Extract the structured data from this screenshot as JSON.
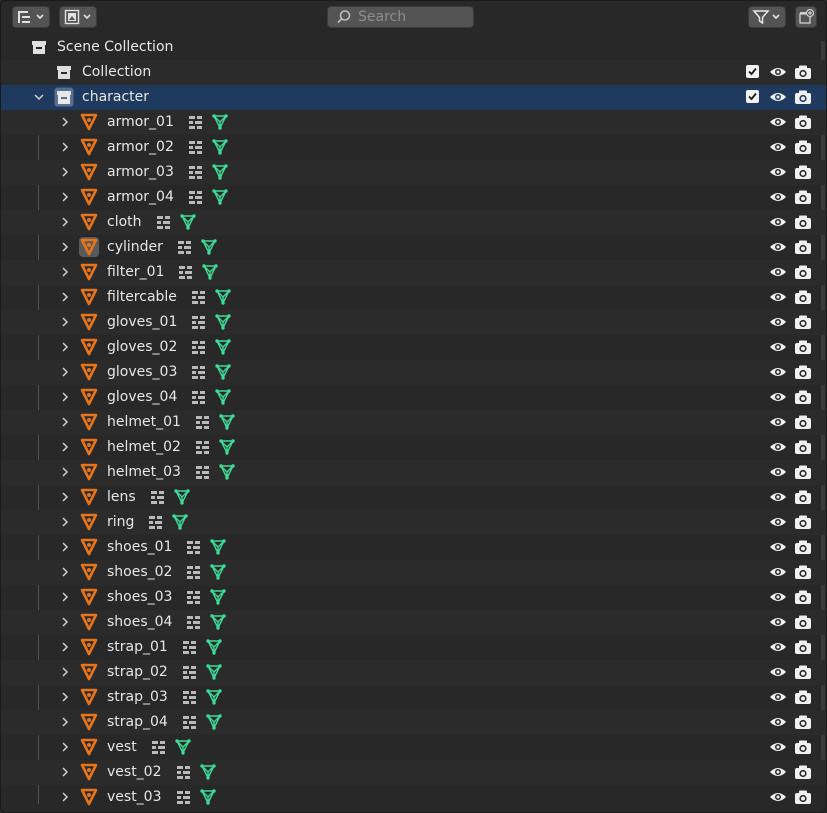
{
  "header": {
    "search_placeholder": "Search",
    "display_mode_icon": "outliner-tree-icon",
    "filter_icon": "funnel-icon",
    "new_collection_icon": "new-collection-icon"
  },
  "tree": {
    "scene_collection": "Scene Collection",
    "collection": "Collection",
    "character": "character",
    "objects": [
      "armor_01",
      "armor_02",
      "armor_03",
      "armor_04",
      "cloth",
      "cylinder",
      "filter_01",
      "filtercable",
      "gloves_01",
      "gloves_02",
      "gloves_03",
      "gloves_04",
      "helmet_01",
      "helmet_02",
      "helmet_03",
      "lens",
      "ring",
      "shoes_01",
      "shoes_02",
      "shoes_03",
      "shoes_04",
      "strap_01",
      "strap_02",
      "strap_03",
      "strap_04",
      "vest",
      "vest_02",
      "vest_03"
    ]
  },
  "colors": {
    "background": "#282828",
    "selected_row": "#1f3a5f",
    "object_orange": "#e8751a",
    "mesh_green": "#3ddc97"
  }
}
